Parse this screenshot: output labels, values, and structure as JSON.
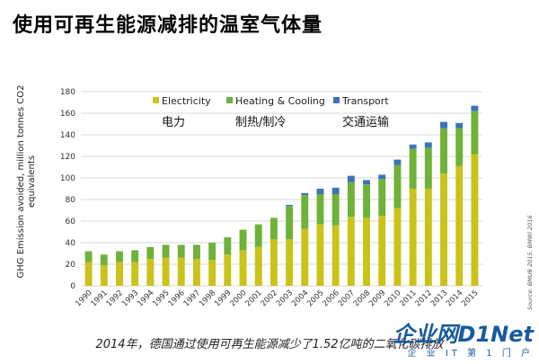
{
  "page": {
    "title": "使用可再生能源减排的温室气体量",
    "caption": "2014年，德国通过使用可再生能源减少了1.52亿吨的二氧化碳排放",
    "source": "Source: BMUB 2015, BMWi 2016",
    "watermark_logo": "企业网D1Net",
    "watermark_sub": "企 业 IT 第 1 门 户"
  },
  "colors": {
    "electricity": "#c9c31a",
    "heating": "#6fb23a",
    "transport": "#3d74b8",
    "grid": "#d9d9d9"
  },
  "chart_data": {
    "type": "bar",
    "stacked": true,
    "ylabel": "GHG Emission avoided, million tonnes CO2 equivalents",
    "xlabel": "",
    "ylim": [
      0,
      180
    ],
    "yticks": [
      0,
      20,
      40,
      60,
      80,
      100,
      120,
      140,
      160,
      180
    ],
    "grid": true,
    "legend_position": "top",
    "categories": [
      "1990",
      "1991",
      "1992",
      "1993",
      "1994",
      "1995",
      "1996",
      "1997",
      "1998",
      "1999",
      "2000",
      "2001",
      "2002",
      "2003",
      "2004",
      "2005",
      "2006",
      "2007",
      "2008",
      "2009",
      "2010",
      "2011",
      "2012",
      "2013",
      "2014",
      "2015"
    ],
    "series": [
      {
        "name": "Electricity",
        "label_cn": "电力",
        "color_key": "electricity",
        "values": [
          22,
          19,
          22,
          22,
          25,
          26,
          26,
          25,
          24,
          29,
          33,
          36,
          43,
          43,
          53,
          57,
          56,
          64,
          63,
          65,
          72,
          90,
          90,
          104,
          111,
          122
        ]
      },
      {
        "name": "Heating & Cooling",
        "label_cn": "制热/制冷",
        "color_key": "heating",
        "values": [
          10,
          10,
          10,
          11,
          11,
          12,
          12,
          13,
          16,
          16,
          19,
          21,
          20,
          31,
          31,
          28,
          29,
          32,
          31,
          34,
          40,
          37,
          38,
          42,
          35,
          40
        ]
      },
      {
        "name": "Transport",
        "label_cn": "交通运输",
        "color_key": "transport",
        "values": [
          0,
          0,
          0,
          0,
          0,
          0,
          0,
          0,
          0,
          0,
          0,
          0,
          0,
          1,
          2,
          5,
          6,
          6,
          4,
          4,
          5,
          4,
          5,
          6,
          5,
          5
        ]
      }
    ]
  }
}
